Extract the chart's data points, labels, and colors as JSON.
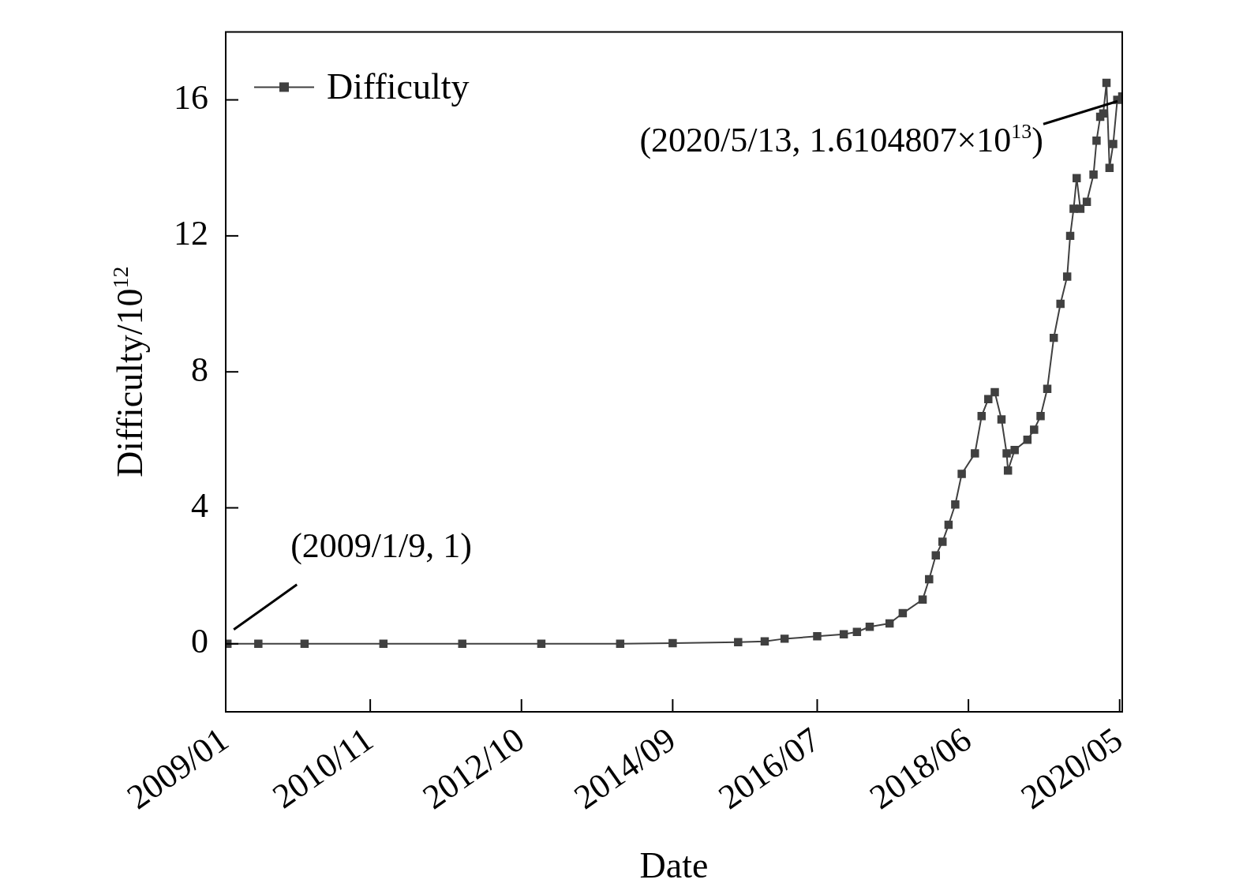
{
  "chart_data": {
    "type": "line",
    "xlabel": "Date",
    "ylabel": "Difficulty/10$^{12}$",
    "x": [
      "2009-01-09",
      "2009-06",
      "2010-01",
      "2011-01",
      "2012-01",
      "2013-01",
      "2014-01",
      "2014-09",
      "2015-07",
      "2015-11",
      "2016-02",
      "2016-07",
      "2016-11",
      "2017-01",
      "2017-03",
      "2017-06",
      "2017-08",
      "2017-11",
      "2017-12",
      "2018-01",
      "2018-02",
      "2018-03",
      "2018-04",
      "2018-05",
      "2018-07",
      "2018-08",
      "2018-09",
      "2018-10",
      "2018-11",
      "2018-11-25",
      "2018-12",
      "2019-01",
      "2019-03",
      "2019-04",
      "2019-05",
      "2019-06",
      "2019-07",
      "2019-08",
      "2019-09",
      "2019-09-15",
      "2019-10",
      "2019-10-15",
      "2019-11",
      "2019-12",
      "2020-01",
      "2020-01-15",
      "2020-02",
      "2020-02-15",
      "2020-03",
      "2020-03-15",
      "2020-04",
      "2020-04-20",
      "2020-05-13"
    ],
    "series": [
      {
        "name": "Difficulty",
        "color": "#404040",
        "values": [
          0,
          0,
          0,
          0,
          0,
          0,
          0,
          0.02,
          0.05,
          0.07,
          0.15,
          0.22,
          0.28,
          0.35,
          0.5,
          0.6,
          0.9,
          1.3,
          1.9,
          2.6,
          3.0,
          3.5,
          4.1,
          5.0,
          5.6,
          6.7,
          7.2,
          7.4,
          6.6,
          5.6,
          5.1,
          5.7,
          6.0,
          6.3,
          6.7,
          7.5,
          9.0,
          10.0,
          10.8,
          12.0,
          12.8,
          13.7,
          12.8,
          13.0,
          13.8,
          14.8,
          15.5,
          15.6,
          16.5,
          14.0,
          14.7,
          16.0,
          16.1
        ]
      }
    ],
    "xlim": [
      "2009-01-01",
      "2020-05-13"
    ],
    "xticks": [
      {
        "value": "2009-01",
        "label": "2009/01"
      },
      {
        "value": "2010-11",
        "label": "2010/11"
      },
      {
        "value": "2012-10",
        "label": "2012/10"
      },
      {
        "value": "2014-09",
        "label": "2014/09"
      },
      {
        "value": "2016-07",
        "label": "2016/07"
      },
      {
        "value": "2018-06",
        "label": "2018/06"
      },
      {
        "value": "2020-05",
        "label": "2020/05"
      }
    ],
    "ylim": [
      -2,
      18
    ],
    "yticks": [
      0,
      4,
      8,
      12,
      16
    ],
    "annotations": [
      {
        "text": "(2009/1/9, 1)",
        "x": "2009-01-09",
        "y": 0
      },
      {
        "text": "(2020/5/13, 1.6104807×10$^{13}$)",
        "x": "2020-05-13",
        "y": 16.1
      }
    ],
    "marker": "square",
    "line_style": "solid",
    "legend": "top left",
    "grid": false
  }
}
